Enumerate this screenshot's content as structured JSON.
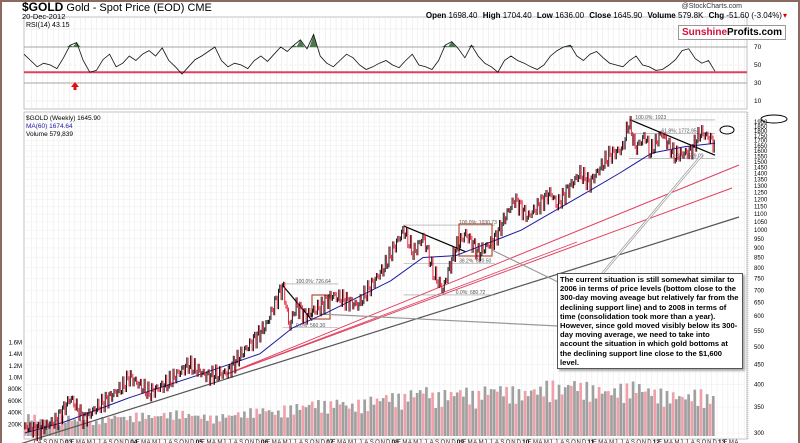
{
  "header": {
    "symbol": "$GOLD",
    "name": "Gold - Spot Price (EOD) CME",
    "date": "20-Dec-2012",
    "credit": "@StockCharts.com",
    "open_label": "Open",
    "open": "1698.40",
    "high_label": "High",
    "high": "1704.40",
    "low_label": "Low",
    "low": "1636.00",
    "close_label": "Close",
    "close": "1645.90",
    "volume_label": "Volume",
    "volume": "579.8K",
    "chg_label": "Chg",
    "chg": "-51.60 (-3.04%)"
  },
  "logo": {
    "part1": "Sunshine",
    "part2": "Profits.com"
  },
  "rsi_panel": {
    "label": "RSI(14) 43.15"
  },
  "price_panel": {
    "legend_price": "$GOLD (Weekly) 1645.90",
    "legend_ma": "MA(60) 1674.64",
    "legend_volume": "Volume 579,839"
  },
  "callout": {
    "text": "The current situation is still somewhat similar to 2006 in terms of price levels (bottom close to the 300-day moving aveage but relatively far from the declining support line) and to 2008 in terms of time (consolidation took more than a year). However, since gold moved visibly below its 300-day moving average, we need to take into account the situation in which gold bottoms at the declining support line close to the $1,600 level."
  },
  "colors": {
    "price_up": "#000000",
    "price_down": "#e0102a",
    "ma": "#1a1aa0",
    "rsi_fill": "#4a7a4a",
    "support_red": "#e04060",
    "box": "#b05030",
    "volume_gray": "#a0a0a0",
    "volume_red": "#f0a0a8"
  },
  "chart_data": [
    {
      "type": "line",
      "title": "RSI(14)",
      "ylim": [
        0,
        100
      ],
      "yticks": [
        10,
        30,
        50,
        70,
        90
      ],
      "overbought": 70,
      "midline": 50,
      "oversold": 30,
      "support_level": 42,
      "xlim": [
        2002.4,
        2013.45
      ],
      "values": [
        62,
        55,
        48,
        52,
        50,
        46,
        58,
        72,
        75,
        55,
        42,
        44,
        56,
        62,
        48,
        52,
        60,
        55,
        62,
        66,
        60,
        69,
        55,
        48,
        40,
        48,
        56,
        60,
        65,
        70,
        55,
        48,
        52,
        50,
        46,
        55,
        60,
        54,
        62,
        70,
        65,
        72,
        78,
        68,
        84,
        60,
        52,
        48,
        55,
        62,
        58,
        50,
        45,
        48,
        52,
        55,
        50,
        47,
        55,
        62,
        50,
        48,
        45,
        55,
        72,
        76,
        68,
        58,
        72,
        60,
        52,
        48,
        42,
        55,
        60,
        55,
        52,
        48,
        45,
        50,
        60,
        66,
        70,
        72,
        60,
        55,
        62,
        65,
        58,
        52,
        50,
        48,
        55,
        60,
        50,
        48,
        44,
        45,
        50,
        56,
        66,
        68,
        57,
        52,
        55,
        43
      ]
    },
    {
      "type": "line",
      "title": "$GOLD (Weekly)",
      "scale": "log",
      "ylim": [
        300,
        1950
      ],
      "yticks": [
        300,
        350,
        400,
        450,
        500,
        550,
        600,
        650,
        700,
        750,
        800,
        850,
        900,
        950,
        1000,
        1050,
        1100,
        1150,
        1200,
        1250,
        1300,
        1350,
        1400,
        1450,
        1500,
        1550,
        1600,
        1650,
        1700,
        1750,
        1800,
        1850,
        1900
      ],
      "x_tick_years": [
        "03",
        "04",
        "05",
        "06",
        "07",
        "08",
        "09",
        "10",
        "11",
        "12",
        "13"
      ],
      "price": [
        [
          2002.4,
          310
        ],
        [
          2002.6,
          305
        ],
        [
          2002.9,
          325
        ],
        [
          2003.1,
          370
        ],
        [
          2003.3,
          325
        ],
        [
          2003.6,
          360
        ],
        [
          2003.9,
          395
        ],
        [
          2004.0,
          420
        ],
        [
          2004.3,
          380
        ],
        [
          2004.6,
          405
        ],
        [
          2004.9,
          450
        ],
        [
          2005.2,
          420
        ],
        [
          2005.5,
          430
        ],
        [
          2005.9,
          520
        ],
        [
          2006.1,
          570
        ],
        [
          2006.35,
          720
        ],
        [
          2006.45,
          560
        ],
        [
          2006.55,
          640
        ],
        [
          2006.7,
          600
        ],
        [
          2006.95,
          640
        ],
        [
          2007.1,
          680
        ],
        [
          2007.3,
          660
        ],
        [
          2007.5,
          640
        ],
        [
          2007.7,
          720
        ],
        [
          2007.9,
          800
        ],
        [
          2008.05,
          900
        ],
        [
          2008.2,
          1000
        ],
        [
          2008.35,
          870
        ],
        [
          2008.5,
          960
        ],
        [
          2008.65,
          780
        ],
        [
          2008.8,
          700
        ],
        [
          2009.0,
          900
        ],
        [
          2009.15,
          980
        ],
        [
          2009.35,
          870
        ],
        [
          2009.6,
          950
        ],
        [
          2009.9,
          1200
        ],
        [
          2010.1,
          1080
        ],
        [
          2010.45,
          1250
        ],
        [
          2010.55,
          1160
        ],
        [
          2010.9,
          1400
        ],
        [
          2011.05,
          1320
        ],
        [
          2011.35,
          1560
        ],
        [
          2011.55,
          1620
        ],
        [
          2011.65,
          1900
        ],
        [
          2011.75,
          1620
        ],
        [
          2011.9,
          1750
        ],
        [
          2011.97,
          1580
        ],
        [
          2012.15,
          1780
        ],
        [
          2012.35,
          1550
        ],
        [
          2012.6,
          1600
        ],
        [
          2012.75,
          1790
        ],
        [
          2012.9,
          1720
        ],
        [
          2012.97,
          1650
        ]
      ],
      "ma": [
        [
          2002.4,
          300
        ],
        [
          2003.0,
          320
        ],
        [
          2004.0,
          370
        ],
        [
          2005.0,
          420
        ],
        [
          2006.0,
          480
        ],
        [
          2006.5,
          560
        ],
        [
          2007.0,
          610
        ],
        [
          2008.0,
          740
        ],
        [
          2008.5,
          850
        ],
        [
          2009.0,
          860
        ],
        [
          2010.0,
          1000
        ],
        [
          2011.0,
          1250
        ],
        [
          2011.5,
          1400
        ],
        [
          2012.0,
          1580
        ],
        [
          2012.5,
          1640
        ],
        [
          2012.97,
          1674
        ]
      ],
      "volume_axis": [
        "200K",
        "400K",
        "600K",
        "800K",
        "1.0M",
        "1.2M",
        "1.4M",
        "1.6M"
      ],
      "volume_k": [
        300,
        250,
        220,
        280,
        240,
        210,
        260,
        300,
        280,
        320,
        300,
        330,
        350,
        320,
        300,
        280,
        310,
        340,
        380,
        400,
        360,
        420,
        450,
        500,
        480,
        520,
        460,
        500,
        550,
        600,
        580,
        650,
        700,
        600,
        640,
        680,
        620,
        700,
        720,
        680,
        650,
        700,
        760,
        720,
        800,
        740,
        700,
        680,
        720,
        760,
        700,
        650,
        620,
        600,
        640,
        580
      ],
      "fib_labels": [
        "100.0%: 1923",
        "61.8%: 1772.95",
        "0.0%: 1529.09",
        "100.0%: 1030.73",
        "38.2%: 820.50",
        "0.0%: 680.72",
        "100.0%: 726.64",
        "0.0%: 560.30"
      ]
    }
  ]
}
